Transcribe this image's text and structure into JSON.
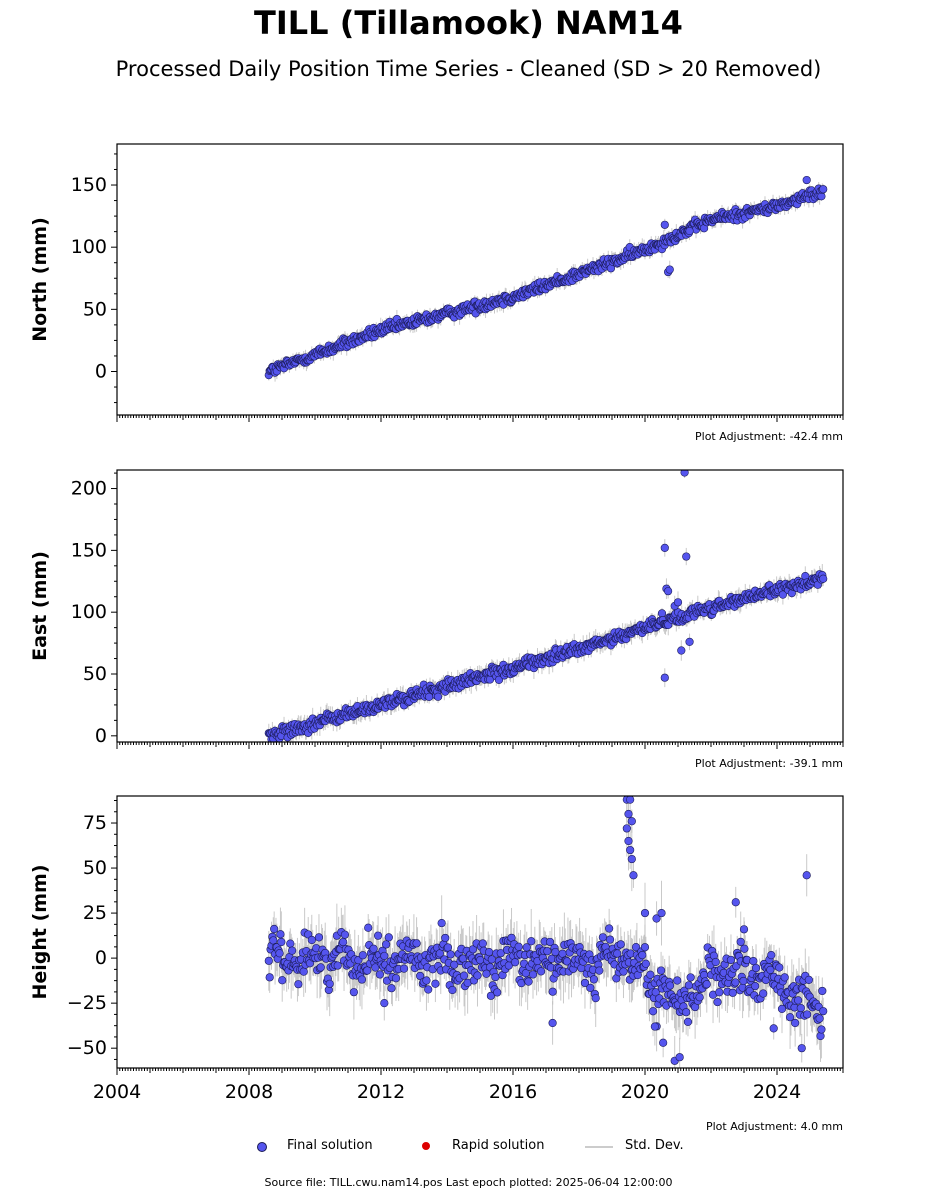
{
  "title": "TILL (Tillamook) NAM14",
  "subtitle": "Processed Daily Position Time Series - Cleaned (SD > 20 Removed)",
  "legend": {
    "final": "Final solution",
    "rapid": "Rapid solution",
    "sd": "Std. Dev."
  },
  "footer": "Source file: TILL.cwu.nam14.pos  Last epoch plotted: 2025-06-04 12:00:00",
  "colors": {
    "final_fill": "#5555ee",
    "final_edge": "#1a1a55",
    "rapid": "#dd0000",
    "sd": "#bbbbbb"
  },
  "chart_data": [
    {
      "type": "scatter",
      "ylabel": "North (mm)",
      "adjustment": "Plot Adjustment: -42.4 mm",
      "xlim": [
        2004,
        2026
      ],
      "ylim": [
        -35,
        183
      ],
      "yticks": [
        0,
        50,
        100,
        150
      ],
      "xticks": [
        2004,
        2008,
        2012,
        2016,
        2020,
        2024
      ],
      "show_xtick_labels": false,
      "trend": [
        [
          2008.6,
          0
        ],
        [
          2012,
          33
        ],
        [
          2016,
          60
        ],
        [
          2019,
          88
        ],
        [
          2020,
          98
        ],
        [
          2022,
          122
        ],
        [
          2024,
          133
        ],
        [
          2025.4,
          145
        ]
      ],
      "noise": 2.2,
      "sd_length": 5,
      "outliers": [
        [
          2020.6,
          118
        ],
        [
          2020.7,
          80
        ],
        [
          2020.75,
          82
        ],
        [
          2024.9,
          154
        ],
        [
          2021.35,
          113
        ]
      ]
    },
    {
      "type": "scatter",
      "ylabel": "East (mm)",
      "adjustment": "Plot Adjustment: -39.1 mm",
      "xlim": [
        2004,
        2026
      ],
      "ylim": [
        -5,
        215
      ],
      "yticks": [
        0,
        50,
        100,
        150,
        200
      ],
      "xticks": [
        2004,
        2008,
        2012,
        2016,
        2020,
        2024
      ],
      "show_xtick_labels": false,
      "trend": [
        [
          2008.6,
          0
        ],
        [
          2012,
          25
        ],
        [
          2016,
          55
        ],
        [
          2019,
          78
        ],
        [
          2020,
          88
        ],
        [
          2021.5,
          100
        ],
        [
          2024,
          118
        ],
        [
          2025.4,
          128
        ]
      ],
      "noise": 2.5,
      "sd_length": 6,
      "outliers": [
        [
          2020.6,
          152
        ],
        [
          2020.6,
          47
        ],
        [
          2020.65,
          119
        ],
        [
          2020.7,
          117
        ],
        [
          2021.2,
          213
        ],
        [
          2021.25,
          145
        ],
        [
          2021.1,
          69
        ],
        [
          2021.35,
          76
        ],
        [
          2020.9,
          105
        ],
        [
          2021.0,
          108
        ]
      ]
    },
    {
      "type": "scatter",
      "ylabel": "Height (mm)",
      "adjustment": "Plot Adjustment: 4.0 mm",
      "xlim": [
        2004,
        2026
      ],
      "ylim": [
        -61,
        90
      ],
      "yticks": [
        -50,
        -25,
        0,
        25,
        50,
        75
      ],
      "xticks": [
        2004,
        2008,
        2012,
        2016,
        2020,
        2024
      ],
      "show_xtick_labels": true,
      "trend": [
        [
          2008.6,
          0
        ],
        [
          2012,
          0
        ],
        [
          2016,
          -3
        ],
        [
          2019.3,
          0
        ],
        [
          2019.5,
          0
        ],
        [
          2020,
          -12
        ],
        [
          2021,
          -25
        ],
        [
          2022,
          -10
        ],
        [
          2024,
          -12
        ],
        [
          2025.4,
          -28
        ]
      ],
      "noise": 6.5,
      "sd_length": 12,
      "outliers": [
        [
          2019.45,
          88
        ],
        [
          2019.55,
          88
        ],
        [
          2019.5,
          80
        ],
        [
          2019.45,
          72
        ],
        [
          2019.5,
          65
        ],
        [
          2019.55,
          60
        ],
        [
          2019.6,
          76
        ],
        [
          2019.65,
          46
        ],
        [
          2019.6,
          55
        ],
        [
          2020.0,
          25
        ],
        [
          2020.35,
          22
        ],
        [
          2020.5,
          25
        ],
        [
          2020.55,
          -47
        ],
        [
          2020.9,
          -57
        ],
        [
          2021.05,
          -55
        ],
        [
          2022.75,
          31
        ],
        [
          2023.0,
          16
        ],
        [
          2022.9,
          9
        ],
        [
          2023.9,
          -39
        ],
        [
          2024.9,
          46
        ],
        [
          2024.75,
          -50
        ],
        [
          2024.55,
          -36
        ],
        [
          2017.2,
          -36
        ],
        [
          2012.1,
          -25
        ],
        [
          2020.3,
          -38
        ]
      ]
    }
  ]
}
